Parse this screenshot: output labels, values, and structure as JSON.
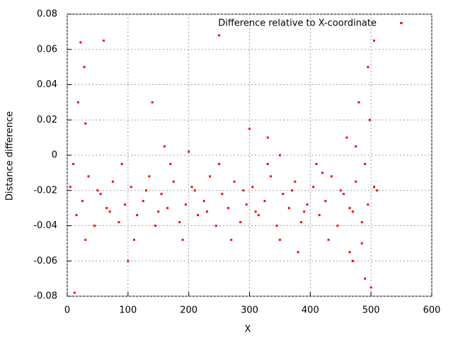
{
  "chart_data": {
    "type": "scatter",
    "xlabel": "X",
    "ylabel": "Distance difference",
    "xlim": [
      0,
      600
    ],
    "xticks": [
      0,
      100,
      200,
      300,
      400,
      500,
      600
    ],
    "ylim": [
      -0.08,
      0.08
    ],
    "yticks": [
      -0.08,
      -0.06,
      -0.04,
      -0.02,
      0,
      0.02,
      0.04,
      0.06,
      0.08
    ],
    "grid": true,
    "legend": "top-right",
    "series": [
      {
        "name": "Difference relative to X-coordinate",
        "color": "#ff0000",
        "x": [
          5,
          15,
          25,
          35,
          45,
          55,
          65,
          75,
          85,
          95,
          105,
          115,
          125,
          135,
          145,
          155,
          165,
          175,
          185,
          195,
          205,
          215,
          225,
          235,
          245,
          255,
          265,
          275,
          285,
          295,
          305,
          315,
          325,
          335,
          345,
          355,
          365,
          375,
          385,
          395,
          405,
          415,
          425,
          435,
          445,
          455,
          465,
          475,
          485,
          495,
          505,
          10,
          30,
          50,
          70,
          90,
          110,
          130,
          150,
          170,
          190,
          210,
          230,
          250,
          270,
          290,
          310,
          330,
          350,
          370,
          390,
          410,
          430,
          450,
          470,
          490,
          460,
          470,
          480,
          490,
          495,
          500,
          505,
          498,
          485,
          475,
          465,
          510,
          22,
          60,
          28,
          12,
          18,
          30,
          140,
          160,
          250,
          300,
          330,
          350,
          550,
          100,
          200,
          380,
          420
        ],
        "y": [
          -0.018,
          -0.034,
          -0.026,
          -0.012,
          -0.04,
          -0.022,
          -0.03,
          -0.015,
          -0.038,
          -0.028,
          -0.018,
          -0.034,
          -0.026,
          -0.012,
          -0.04,
          -0.022,
          -0.03,
          -0.015,
          -0.038,
          -0.028,
          -0.018,
          -0.034,
          -0.026,
          -0.012,
          -0.04,
          -0.022,
          -0.03,
          -0.015,
          -0.038,
          -0.028,
          -0.018,
          -0.034,
          -0.026,
          -0.012,
          -0.04,
          -0.022,
          -0.03,
          -0.015,
          -0.038,
          -0.028,
          -0.018,
          -0.034,
          -0.026,
          -0.012,
          -0.04,
          -0.022,
          -0.03,
          -0.015,
          -0.038,
          -0.028,
          -0.018,
          -0.005,
          -0.048,
          -0.02,
          -0.032,
          -0.005,
          -0.048,
          -0.02,
          -0.032,
          -0.005,
          -0.048,
          -0.02,
          -0.032,
          -0.005,
          -0.048,
          -0.02,
          -0.032,
          -0.005,
          -0.048,
          -0.02,
          -0.032,
          -0.005,
          -0.048,
          -0.02,
          -0.032,
          -0.005,
          0.01,
          -0.06,
          0.03,
          -0.07,
          0.05,
          -0.075,
          0.065,
          0.02,
          -0.05,
          0.005,
          -0.055,
          -0.02,
          0.064,
          0.065,
          0.05,
          -0.078,
          0.03,
          0.018,
          0.03,
          0.005,
          0.068,
          0.015,
          0.01,
          0.0,
          0.075,
          -0.06,
          0.002,
          -0.055,
          -0.01
        ]
      }
    ]
  }
}
